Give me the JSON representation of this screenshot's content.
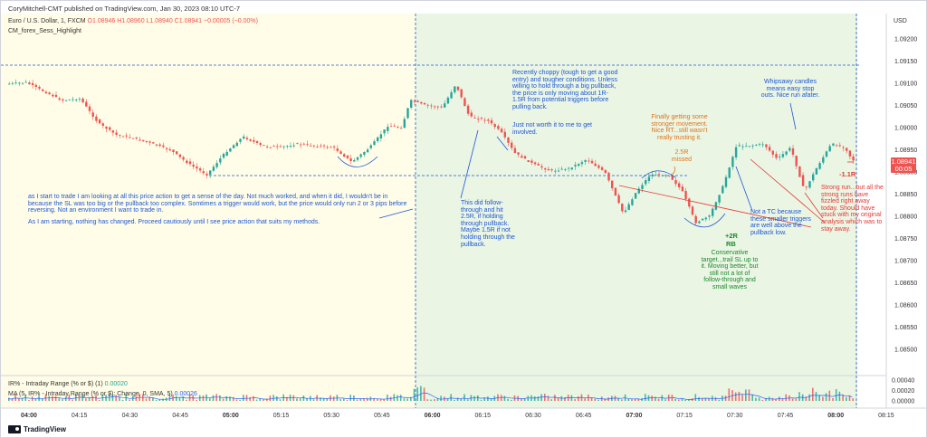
{
  "header": {
    "published": "CoryMitchell-CMT published on TradingView.com, Jan 30, 2023 08:10 UTC-7",
    "symbol": "Euro / U.S. Dollar, 1, FXCM",
    "ohlc": "O1.08946 H1.08960 L1.08940 C1.08941 −0.00005 (−0.00%)",
    "indicator": "CM_forex_Sess_Highlight",
    "currency": "USD"
  },
  "price_axis": {
    "labels": [
      "1.09200",
      "1.09150",
      "1.09100",
      "1.09050",
      "1.09000",
      "1.08950",
      "1.08900",
      "1.08850",
      "1.08800",
      "1.08750",
      "1.08700",
      "1.08650",
      "1.08600",
      "1.08550",
      "1.08500"
    ],
    "current_price": "1.08941",
    "countdown": "00:05"
  },
  "lower_pane": {
    "ir_label": "IR% - Intraday Range (% or $) (1)",
    "ir_value": "0.00020",
    "ma_label": "MA (5, IR% - Intraday Range (% or $): Change, 0, SMA, 5)",
    "ma_value": "0.00026",
    "axis_labels": [
      "0.00040",
      "0.00020",
      "0.00000"
    ]
  },
  "time_axis": [
    "04:00",
    "04:15",
    "04:30",
    "04:45",
    "05:00",
    "05:15",
    "05:30",
    "05:45",
    "06:00",
    "06:15",
    "06:30",
    "06:45",
    "07:00",
    "07:15",
    "07:30",
    "07:45",
    "08:00",
    "08:15"
  ],
  "annotations": {
    "left_note_1": "as I start to trade I am looking at all this price action to get a sense of the day. Not much worked, and when it did, I wouldn't be in because the SL was too big or the pullback too complex. Somtimes a trigger would work, but the price would only run 2 or 3 pips before reversing. Not an environment I want to trade in.",
    "left_note_2": "As I am starting, nothing has changed. Proceed cautiously until I see price action that suits my methods.",
    "choppy_note_1": "Recently choppy (tough to get a good entry) and tougher conditions. Unless willing to hold through a big pullback, the price is only moving about 1R-1.5R from potential triggers before pulling back.",
    "choppy_note_2": "Just not worth it to me to get involved.",
    "followthrough_note": "This did follow-through and hit 2.5R, if holding through pullback. Maybe 1.5R if not holding through the pullback.",
    "stronger_note": "Finally getting some stronger movement. Nice RT...still wasn't really trusting it.",
    "missed_note": "2.5R missed",
    "plus2r": "+2R",
    "rb": "RB",
    "conservative_note": "Conservative target...trail SL up to it. Moving better, but still not a lot of follow-through and small waves",
    "not_tc_note": "Not a TC because these smaller triggers are well above the pullback low.",
    "whipsawy_note": "Whipsawy candles means easy stop outs. Nice run afater.",
    "minus1r": "-1.1R",
    "strong_run_note": "Strong run...but all the strong runs have fizzled right away today. Should have stuck with my original analysis which was to stay away."
  },
  "branding": "TradingView",
  "colors": {
    "up": "#26a69a",
    "down": "#ef5350",
    "asia_session_bg": "#fffde7",
    "london_session_bg": "#eaf5e4"
  }
}
